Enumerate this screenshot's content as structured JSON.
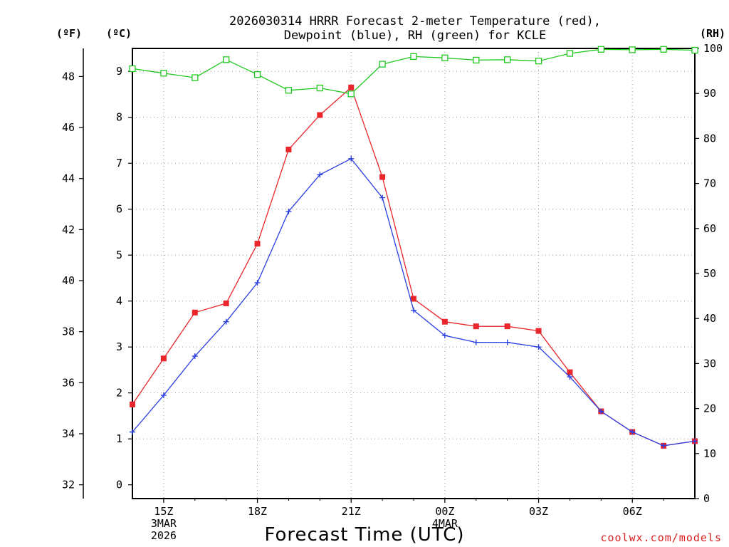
{
  "chart_data": {
    "type": "line",
    "title_line1": "2026030314 HRRR Forecast 2-meter Temperature (red),",
    "title_line2": "Dewpoint (blue), RH (green) for KCLE",
    "xlabel": "Forecast Time (UTC)",
    "credit": "coolwx.com/models",
    "units": {
      "fahrenheit": "(ºF)",
      "celsius": "(ºC)",
      "rh": "(RH)"
    },
    "x_hours": [
      14,
      15,
      16,
      17,
      18,
      19,
      20,
      21,
      22,
      23,
      24,
      25,
      26,
      27,
      28,
      29,
      30,
      31,
      32
    ],
    "x_ticks": [
      {
        "hour": 15,
        "lines": [
          "15Z",
          "3MAR",
          "2026"
        ]
      },
      {
        "hour": 18,
        "lines": [
          "18Z"
        ]
      },
      {
        "hour": 21,
        "lines": [
          "21Z"
        ]
      },
      {
        "hour": 24,
        "lines": [
          "00Z",
          "4MAR"
        ]
      },
      {
        "hour": 27,
        "lines": [
          "03Z"
        ]
      },
      {
        "hour": 30,
        "lines": [
          "06Z"
        ]
      }
    ],
    "xlim": [
      14,
      32
    ],
    "celsius_axis": {
      "ylim": [
        -0.3,
        9.5
      ],
      "ticks": [
        0,
        1,
        2,
        3,
        4,
        5,
        6,
        7,
        8,
        9
      ]
    },
    "fahrenheit_axis": {
      "ticks": [
        32,
        34,
        36,
        38,
        40,
        42,
        44,
        46,
        48
      ]
    },
    "rh_axis": {
      "ylim": [
        0,
        100
      ],
      "ticks": [
        0,
        10,
        20,
        30,
        40,
        50,
        60,
        70,
        80,
        90,
        100
      ]
    },
    "grid": true,
    "series": [
      {
        "name": "Temperature",
        "unit": "C",
        "color": "#e8262b",
        "marker": "filled-square",
        "values": [
          1.75,
          2.75,
          3.75,
          3.95,
          5.25,
          7.3,
          8.05,
          8.65,
          6.7,
          4.05,
          3.55,
          3.45,
          3.45,
          3.35,
          2.45,
          1.6,
          1.15,
          0.85,
          0.95
        ]
      },
      {
        "name": "Dewpoint",
        "unit": "C",
        "color": "#2a3fe0",
        "marker": "plus",
        "values": [
          1.15,
          1.95,
          2.8,
          3.55,
          4.4,
          5.95,
          6.75,
          7.1,
          6.25,
          3.8,
          3.25,
          3.1,
          3.1,
          3.0,
          2.35,
          1.6,
          1.15,
          0.85,
          0.95
        ]
      },
      {
        "name": "RH",
        "unit": "%",
        "color": "#20c820",
        "marker": "open-square",
        "values": [
          95.5,
          94.5,
          93.5,
          97.5,
          94.2,
          90.7,
          91.2,
          89.9,
          96.5,
          98.2,
          97.9,
          97.4,
          97.5,
          97.2,
          98.9,
          99.8,
          99.7,
          99.8,
          99.6
        ]
      }
    ]
  }
}
